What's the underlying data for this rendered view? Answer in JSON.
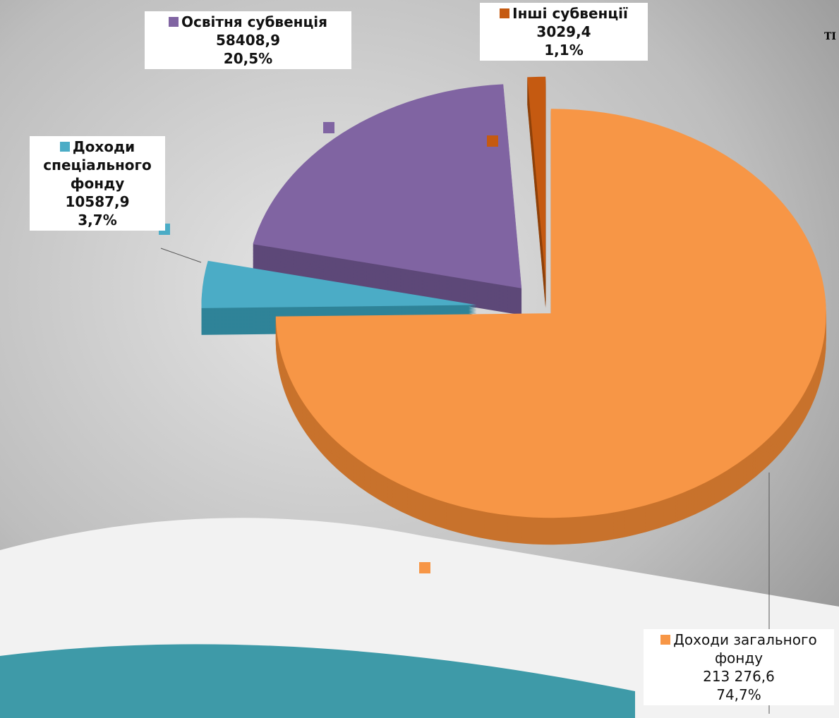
{
  "chart_data": {
    "type": "pie3d",
    "annotation": "ТІ",
    "series": [
      {
        "name": "Доходи загального фонду",
        "color": "#f79646",
        "side_color": "#c8722c",
        "values": [
          213276.6
        ],
        "value_labels": [
          "213 276,6"
        ],
        "percents": [
          74.7
        ],
        "percent_labels": [
          "74,7%"
        ]
      },
      {
        "name": "Доходи спеціального фонду",
        "color": "#4bacc6",
        "side_color": "#2f8398",
        "values": [
          10587.9
        ],
        "value_labels": [
          "10587,9"
        ],
        "percents": [
          3.7
        ],
        "percent_labels": [
          "3,7%"
        ]
      },
      {
        "name": "Освітня субвенція",
        "color": "#8064a2",
        "side_color": "#5d4878",
        "values": [
          58408.9
        ],
        "value_labels": [
          "58408,9"
        ],
        "percents": [
          20.5
        ],
        "percent_labels": [
          "20,5%"
        ]
      },
      {
        "name": "Інші субвенції",
        "color": "#c55a11",
        "side_color": "#8f400a",
        "values": [
          3029.4
        ],
        "value_labels": [
          "3029,4"
        ],
        "percents": [
          1.1
        ],
        "percent_labels": [
          "1,1%"
        ]
      }
    ]
  }
}
